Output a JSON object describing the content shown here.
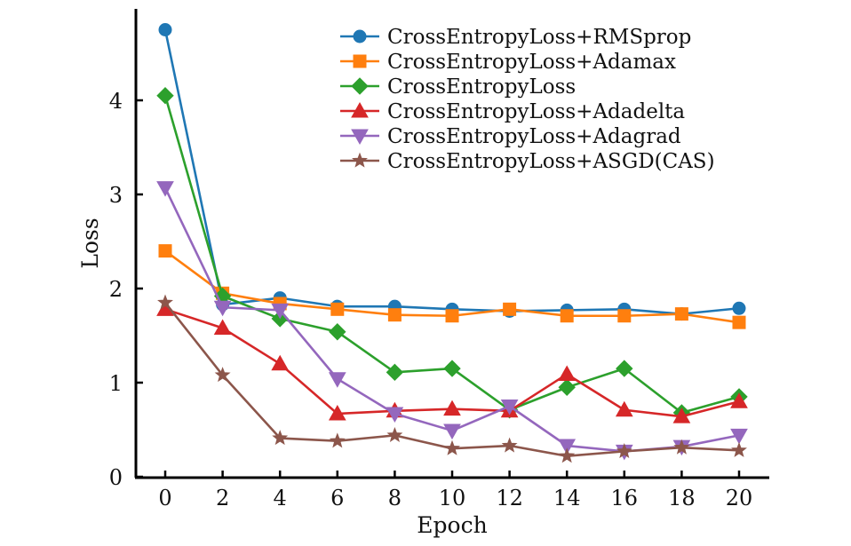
{
  "chart_data": {
    "type": "line",
    "title": "",
    "xlabel": "Epoch",
    "ylabel": "Loss",
    "x": [
      0,
      2,
      4,
      6,
      8,
      10,
      12,
      14,
      16,
      18,
      20
    ],
    "xlim": [
      -1,
      21
    ],
    "ylim": [
      0,
      4.95
    ],
    "xticks": [
      0,
      2,
      4,
      6,
      8,
      10,
      12,
      14,
      16,
      18,
      20
    ],
    "yticks": [
      0,
      1,
      2,
      3,
      4
    ],
    "grid": false,
    "legend_position": "top-right",
    "series": [
      {
        "name": "CrossEntropyLoss+RMSprop",
        "color": "#1f77b4",
        "marker": "circle",
        "values": [
          4.75,
          1.83,
          1.9,
          1.81,
          1.81,
          1.78,
          1.76,
          1.77,
          1.78,
          1.73,
          1.79
        ]
      },
      {
        "name": "CrossEntropyLoss+Adamax",
        "color": "#ff7f0e",
        "marker": "square",
        "values": [
          2.4,
          1.95,
          1.84,
          1.78,
          1.72,
          1.71,
          1.78,
          1.71,
          1.71,
          1.73,
          1.64
        ]
      },
      {
        "name": "CrossEntropyLoss",
        "color": "#2ca02c",
        "marker": "diamond",
        "values": [
          4.05,
          1.92,
          1.68,
          1.54,
          1.11,
          1.15,
          0.71,
          0.95,
          1.15,
          0.68,
          0.85
        ]
      },
      {
        "name": "CrossEntropyLoss+Adadelta",
        "color": "#d62728",
        "marker": "triangle-up",
        "values": [
          1.78,
          1.58,
          1.2,
          0.67,
          0.7,
          0.72,
          0.7,
          1.09,
          0.71,
          0.64,
          0.8
        ]
      },
      {
        "name": "CrossEntropyLoss+Adagrad",
        "color": "#9467bd",
        "marker": "triangle-down",
        "values": [
          3.07,
          1.8,
          1.77,
          1.04,
          0.67,
          0.49,
          0.75,
          0.33,
          0.27,
          0.32,
          0.44
        ]
      },
      {
        "name": "CrossEntropyLoss+ASGD(CAS)",
        "color": "#8c564b",
        "marker": "star",
        "values": [
          1.85,
          1.08,
          0.41,
          0.38,
          0.44,
          0.3,
          0.33,
          0.22,
          0.27,
          0.31,
          0.28
        ]
      }
    ]
  }
}
